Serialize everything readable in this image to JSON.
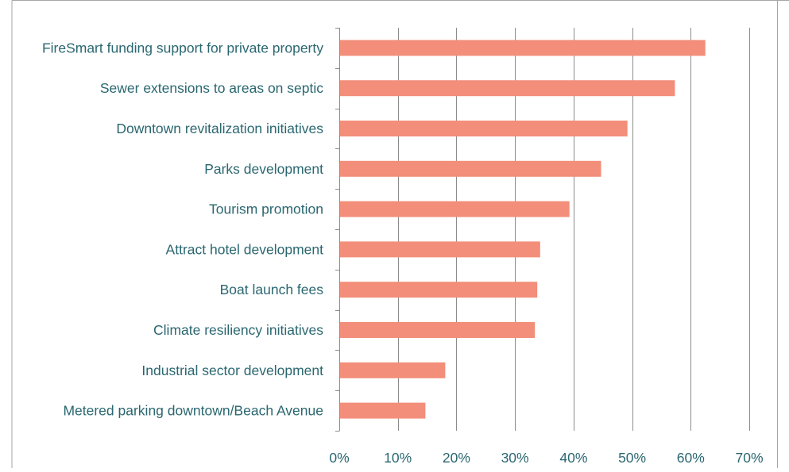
{
  "chart_data": {
    "type": "bar",
    "orientation": "horizontal",
    "categories": [
      "FireSmart funding support for private property",
      "Sewer extensions to areas on septic",
      "Downtown revitalization initiatives",
      "Parks development",
      "Tourism promotion",
      "Attract hotel development",
      "Boat launch fees",
      "Climate resiliency initiatives",
      "Industrial sector development",
      "Metered parking downtown/Beach Avenue"
    ],
    "values": [
      62.5,
      57.3,
      49.2,
      44.7,
      39.3,
      34.3,
      33.8,
      33.4,
      18.1,
      14.7
    ],
    "xlim": [
      0,
      70
    ],
    "xticks": [
      0,
      10,
      20,
      30,
      40,
      50,
      60,
      70
    ],
    "xtick_labels": [
      "0%",
      "10%",
      "20%",
      "30%",
      "40%",
      "50%",
      "60%",
      "70%"
    ],
    "grid": "vertical",
    "legend": "none",
    "title": "",
    "xlabel": "",
    "ylabel": "",
    "colors": {
      "bar": "#f28e7a",
      "text": "#2a6770",
      "grid": "#8c8c8c",
      "axis": "#8c8c8c",
      "frame": "#a6a6a6"
    }
  }
}
